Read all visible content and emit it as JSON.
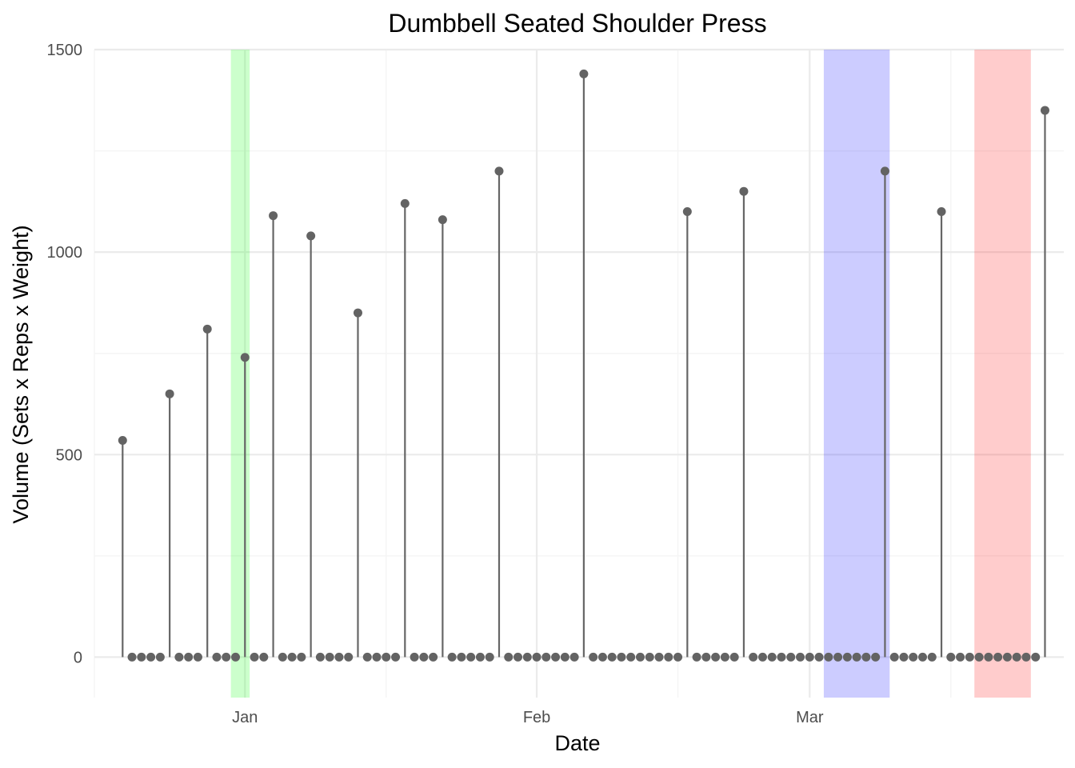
{
  "chart_data": {
    "type": "lollipop",
    "title": "Dumbbell Seated Shoulder Press",
    "xlabel": "Date",
    "ylabel": "Volume (Sets x Reps x Weight)",
    "x_unit": "date",
    "xlim": [
      "2023-12-16",
      "2024-03-28"
    ],
    "ylim": [
      -100,
      1500
    ],
    "y_ticks": [
      0,
      500,
      1000,
      1500
    ],
    "y_tick_labels": [
      "0",
      "500",
      "1000",
      "1500"
    ],
    "x_ticks": [
      "2024-01-01",
      "2024-02-01",
      "2024-03-01"
    ],
    "x_tick_labels": [
      "Jan",
      "Feb",
      "Mar"
    ],
    "x_minor_ticks": [
      "2023-12-16",
      "2024-01-16",
      "2024-02-16",
      "2024-03-16"
    ],
    "grid": true,
    "legend": "none",
    "colors": {
      "stem": "#666666",
      "point": "#636363",
      "grid_major": "#ebebeb",
      "grid_minor": "#f5f5f5"
    },
    "highlight_bands": [
      {
        "start": "2023-12-31",
        "end": "2024-01-01",
        "color": "#00ff00",
        "opacity": 0.2
      },
      {
        "start": "2024-03-03",
        "end": "2024-03-09",
        "color": "#0000ff",
        "opacity": 0.2
      },
      {
        "start": "2024-03-19",
        "end": "2024-03-24",
        "color": "#ff0000",
        "opacity": 0.2
      }
    ],
    "series": [
      {
        "points": [
          {
            "x": "2023-12-19",
            "y": 535
          },
          {
            "x": "2023-12-20",
            "y": 0
          },
          {
            "x": "2023-12-21",
            "y": 0
          },
          {
            "x": "2023-12-22",
            "y": 0
          },
          {
            "x": "2023-12-23",
            "y": 0
          },
          {
            "x": "2023-12-24",
            "y": 650
          },
          {
            "x": "2023-12-25",
            "y": 0
          },
          {
            "x": "2023-12-26",
            "y": 0
          },
          {
            "x": "2023-12-27",
            "y": 0
          },
          {
            "x": "2023-12-28",
            "y": 810
          },
          {
            "x": "2023-12-29",
            "y": 0
          },
          {
            "x": "2023-12-30",
            "y": 0
          },
          {
            "x": "2023-12-31",
            "y": 0
          },
          {
            "x": "2024-01-01",
            "y": 740
          },
          {
            "x": "2024-01-02",
            "y": 0
          },
          {
            "x": "2024-01-03",
            "y": 0
          },
          {
            "x": "2024-01-04",
            "y": 1090
          },
          {
            "x": "2024-01-05",
            "y": 0
          },
          {
            "x": "2024-01-06",
            "y": 0
          },
          {
            "x": "2024-01-07",
            "y": 0
          },
          {
            "x": "2024-01-08",
            "y": 1040
          },
          {
            "x": "2024-01-09",
            "y": 0
          },
          {
            "x": "2024-01-10",
            "y": 0
          },
          {
            "x": "2024-01-11",
            "y": 0
          },
          {
            "x": "2024-01-12",
            "y": 0
          },
          {
            "x": "2024-01-13",
            "y": 850
          },
          {
            "x": "2024-01-14",
            "y": 0
          },
          {
            "x": "2024-01-15",
            "y": 0
          },
          {
            "x": "2024-01-16",
            "y": 0
          },
          {
            "x": "2024-01-17",
            "y": 0
          },
          {
            "x": "2024-01-18",
            "y": 1120
          },
          {
            "x": "2024-01-19",
            "y": 0
          },
          {
            "x": "2024-01-20",
            "y": 0
          },
          {
            "x": "2024-01-21",
            "y": 0
          },
          {
            "x": "2024-01-22",
            "y": 1080
          },
          {
            "x": "2024-01-23",
            "y": 0
          },
          {
            "x": "2024-01-24",
            "y": 0
          },
          {
            "x": "2024-01-25",
            "y": 0
          },
          {
            "x": "2024-01-26",
            "y": 0
          },
          {
            "x": "2024-01-27",
            "y": 0
          },
          {
            "x": "2024-01-28",
            "y": 1200
          },
          {
            "x": "2024-01-29",
            "y": 0
          },
          {
            "x": "2024-01-30",
            "y": 0
          },
          {
            "x": "2024-01-31",
            "y": 0
          },
          {
            "x": "2024-02-01",
            "y": 0
          },
          {
            "x": "2024-02-02",
            "y": 0
          },
          {
            "x": "2024-02-03",
            "y": 0
          },
          {
            "x": "2024-02-04",
            "y": 0
          },
          {
            "x": "2024-02-05",
            "y": 0
          },
          {
            "x": "2024-02-06",
            "y": 1440
          },
          {
            "x": "2024-02-07",
            "y": 0
          },
          {
            "x": "2024-02-08",
            "y": 0
          },
          {
            "x": "2024-02-09",
            "y": 0
          },
          {
            "x": "2024-02-10",
            "y": 0
          },
          {
            "x": "2024-02-11",
            "y": 0
          },
          {
            "x": "2024-02-12",
            "y": 0
          },
          {
            "x": "2024-02-13",
            "y": 0
          },
          {
            "x": "2024-02-14",
            "y": 0
          },
          {
            "x": "2024-02-15",
            "y": 0
          },
          {
            "x": "2024-02-16",
            "y": 0
          },
          {
            "x": "2024-02-17",
            "y": 1100
          },
          {
            "x": "2024-02-18",
            "y": 0
          },
          {
            "x": "2024-02-19",
            "y": 0
          },
          {
            "x": "2024-02-20",
            "y": 0
          },
          {
            "x": "2024-02-21",
            "y": 0
          },
          {
            "x": "2024-02-22",
            "y": 0
          },
          {
            "x": "2024-02-23",
            "y": 1150
          },
          {
            "x": "2024-02-24",
            "y": 0
          },
          {
            "x": "2024-02-25",
            "y": 0
          },
          {
            "x": "2024-02-26",
            "y": 0
          },
          {
            "x": "2024-02-27",
            "y": 0
          },
          {
            "x": "2024-02-28",
            "y": 0
          },
          {
            "x": "2024-02-29",
            "y": 0
          },
          {
            "x": "2024-03-01",
            "y": 0
          },
          {
            "x": "2024-03-02",
            "y": 0
          },
          {
            "x": "2024-03-03",
            "y": 0
          },
          {
            "x": "2024-03-04",
            "y": 0
          },
          {
            "x": "2024-03-05",
            "y": 0
          },
          {
            "x": "2024-03-06",
            "y": 0
          },
          {
            "x": "2024-03-07",
            "y": 0
          },
          {
            "x": "2024-03-08",
            "y": 0
          },
          {
            "x": "2024-03-09",
            "y": 1200
          },
          {
            "x": "2024-03-10",
            "y": 0
          },
          {
            "x": "2024-03-11",
            "y": 0
          },
          {
            "x": "2024-03-12",
            "y": 0
          },
          {
            "x": "2024-03-13",
            "y": 0
          },
          {
            "x": "2024-03-14",
            "y": 0
          },
          {
            "x": "2024-03-15",
            "y": 1100
          },
          {
            "x": "2024-03-16",
            "y": 0
          },
          {
            "x": "2024-03-17",
            "y": 0
          },
          {
            "x": "2024-03-18",
            "y": 0
          },
          {
            "x": "2024-03-19",
            "y": 0
          },
          {
            "x": "2024-03-20",
            "y": 0
          },
          {
            "x": "2024-03-21",
            "y": 0
          },
          {
            "x": "2024-03-22",
            "y": 0
          },
          {
            "x": "2024-03-23",
            "y": 0
          },
          {
            "x": "2024-03-24",
            "y": 0
          },
          {
            "x": "2024-03-25",
            "y": 0
          },
          {
            "x": "2024-03-26",
            "y": 1350
          }
        ]
      }
    ]
  }
}
